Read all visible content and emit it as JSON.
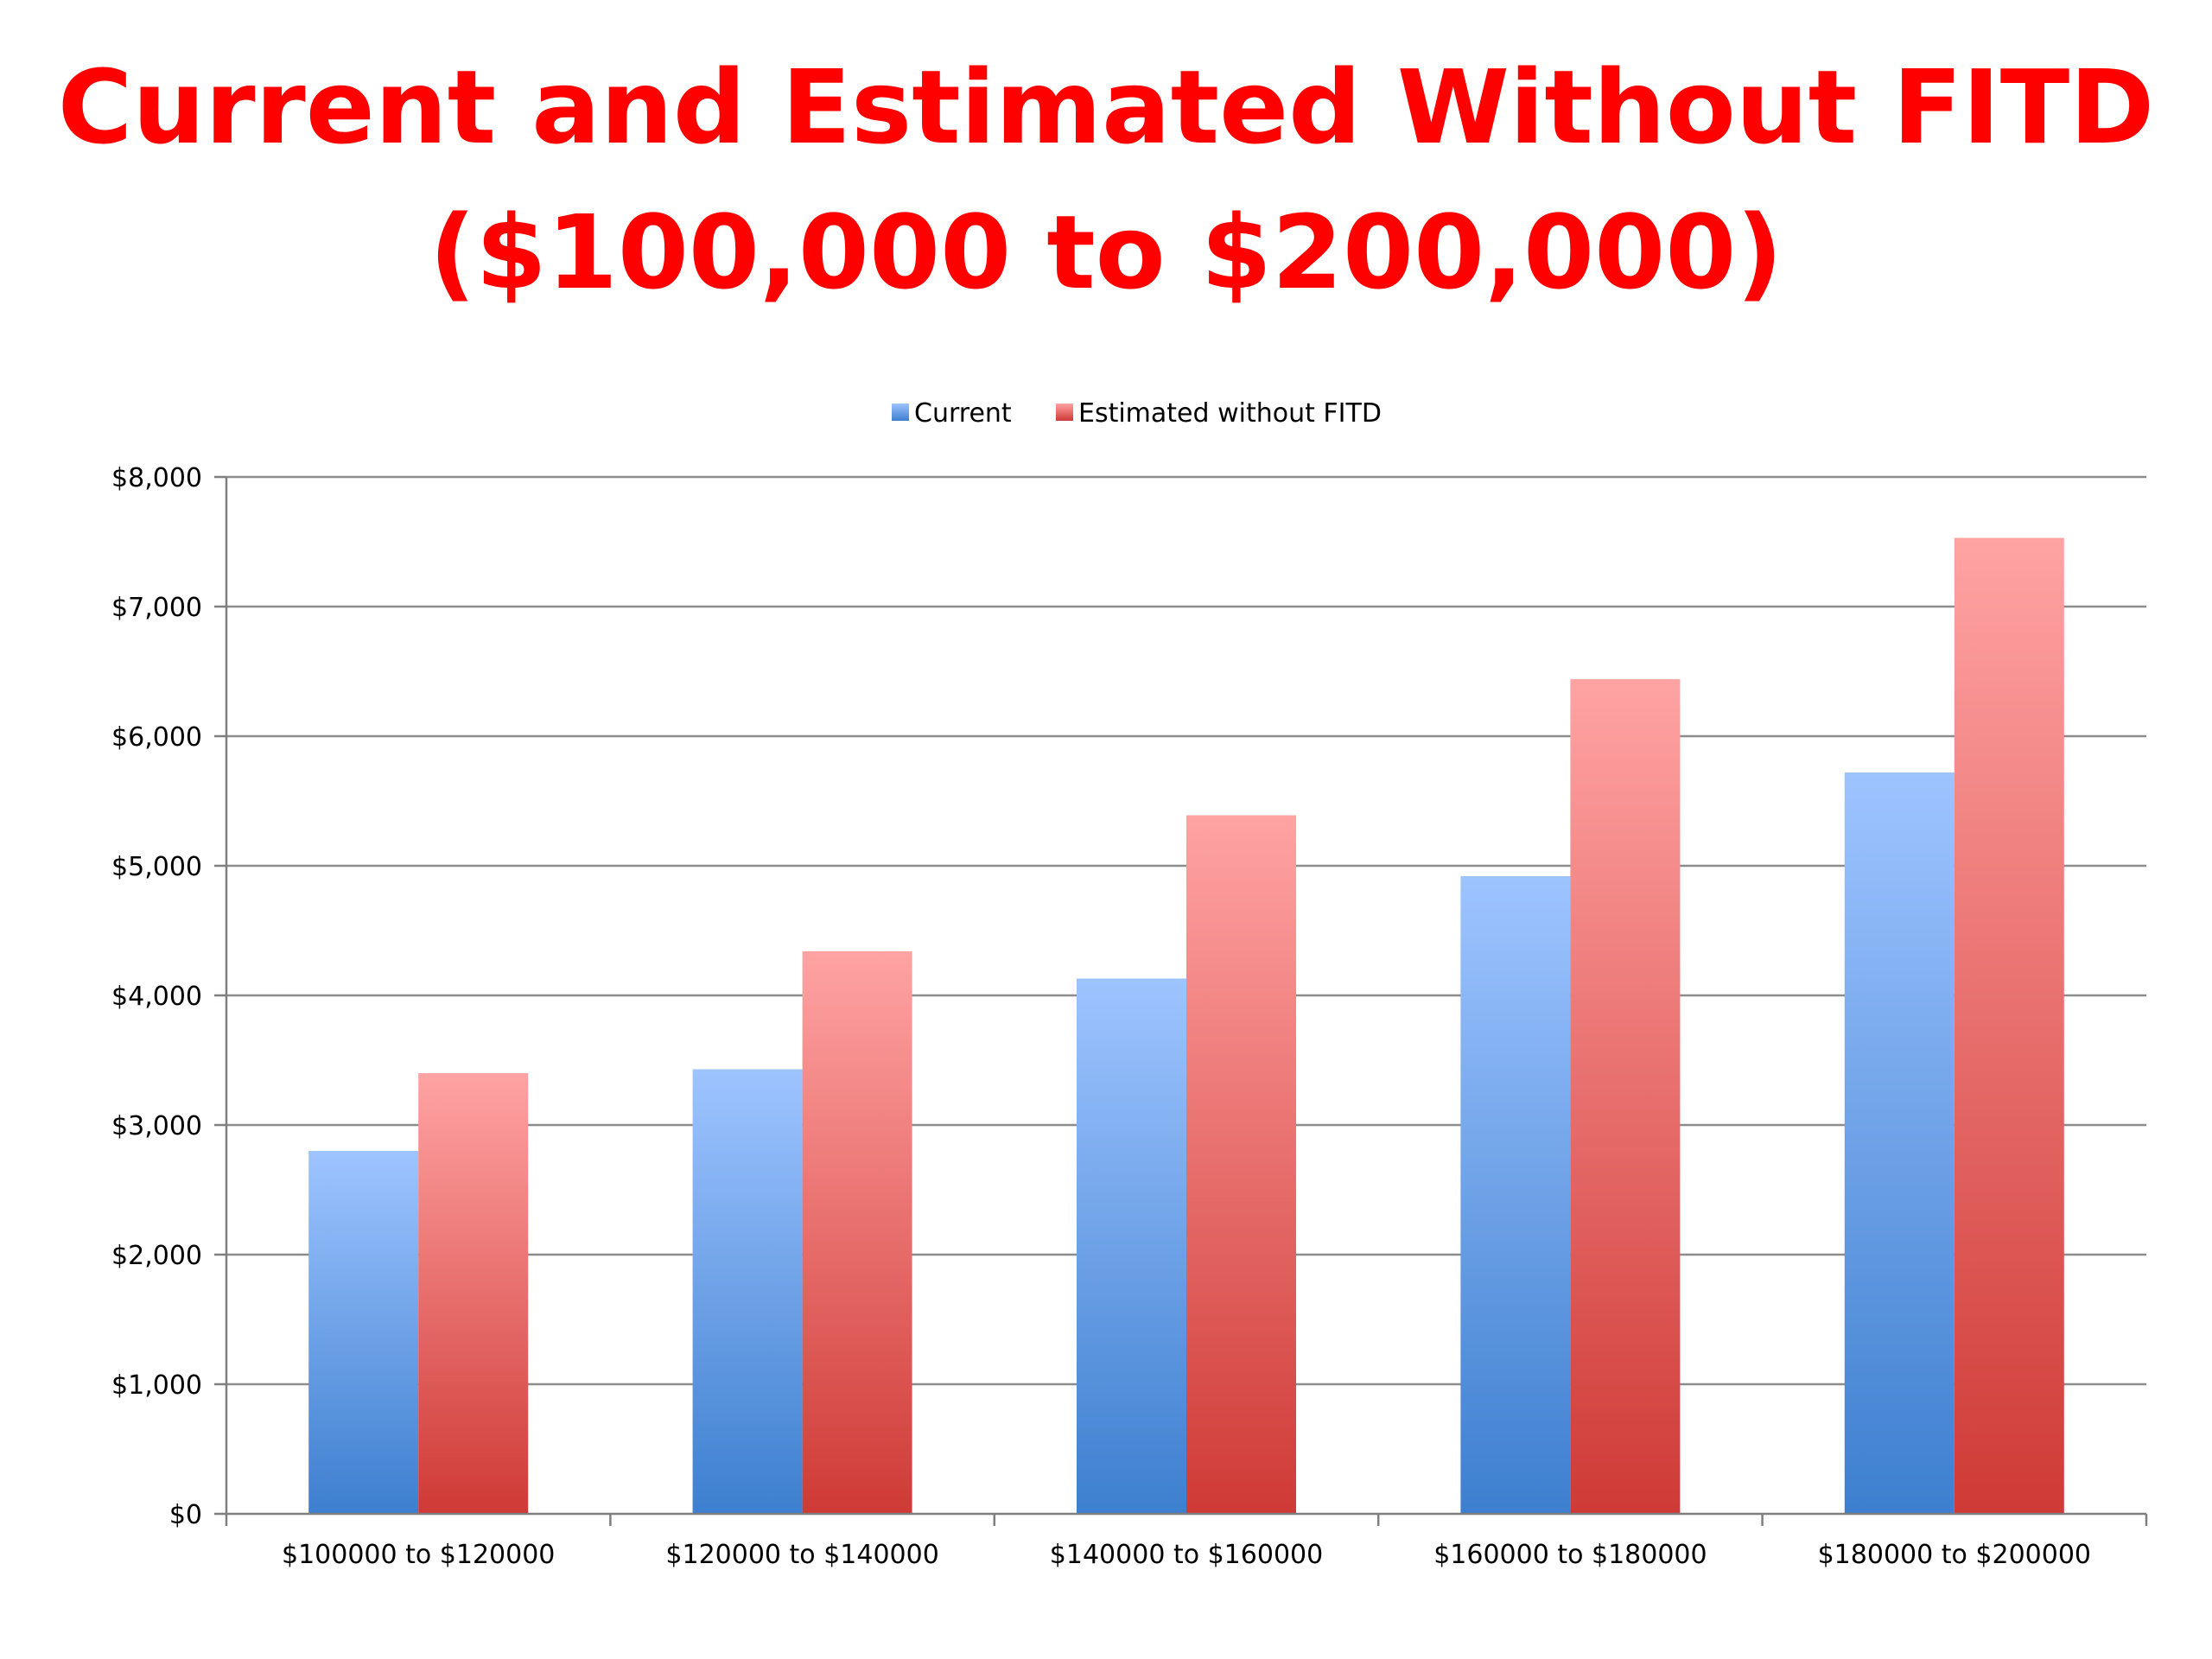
{
  "slide": {
    "title_line1": "Current and Estimated Without FITD",
    "title_line2": "($100,000 to $200,000)"
  },
  "colors": {
    "title": "#ff0000",
    "current_top": "#9ec4ff",
    "current_bottom": "#3d7fcf",
    "estimated_top": "#ffa3a3",
    "estimated_bottom": "#cf3a36",
    "gridline": "#8c8c8c",
    "axis": "#7f7f7f"
  },
  "chart_data": {
    "type": "bar",
    "title": "",
    "xlabel": "",
    "ylabel": "",
    "ylim": [
      0,
      8000
    ],
    "y_ticks": [
      0,
      1000,
      2000,
      3000,
      4000,
      5000,
      6000,
      7000,
      8000
    ],
    "y_tick_labels": [
      "$0",
      "$1,000",
      "$2,000",
      "$3,000",
      "$4,000",
      "$5,000",
      "$6,000",
      "$7,000",
      "$8,000"
    ],
    "grid": true,
    "legend_position": "top-center",
    "categories": [
      "$100000 to $120000",
      "$120000 to $140000",
      "$140000 to $160000",
      "$160000 to $180000",
      "$180000 to $200000"
    ],
    "series": [
      {
        "name": "Current",
        "values": [
          2800,
          3430,
          4130,
          4920,
          5720
        ]
      },
      {
        "name": "Estimated without FITD",
        "values": [
          3400,
          4340,
          5390,
          6440,
          7530
        ]
      }
    ]
  }
}
